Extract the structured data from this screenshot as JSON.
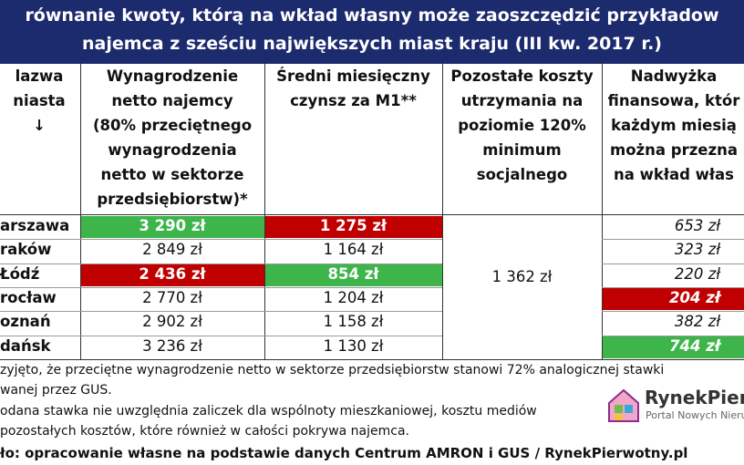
{
  "title": {
    "lines": [
      "równanie kwoty, którą na wkład własny może zaoszczędzić przykładow",
      "najemca z sześciu największych miast kraju (III kw. 2017 r.)"
    ]
  },
  "table": {
    "headers": [
      [
        "lazwa",
        "niasta",
        "↓"
      ],
      [
        "Wynagrodzenie",
        "netto najemcy",
        "(80% przeciętnego",
        "wynagrodzenia",
        "netto w sektorze",
        "przedsiębiorstw)*"
      ],
      [
        "Średni miesięczny",
        "czynsz za M1**"
      ],
      [
        "Pozostałe koszty",
        "utrzymania na",
        "poziomie 120%",
        "minimum",
        "socjalnego"
      ],
      [
        "Nadwyżka",
        "finansowa, któr",
        "każdym miesią",
        "można przezna",
        "na wkład włas"
      ]
    ],
    "rows": [
      {
        "city": "arszawa",
        "salary": "3 290 zł",
        "rent": "1 275 zł",
        "surplus": "653 zł",
        "salary_color": "#3db54a",
        "rent_color": "#c00000"
      },
      {
        "city": "raków",
        "salary": "2 849 zł",
        "rent": "1 164 zł",
        "surplus": "323 zł"
      },
      {
        "city": "Łódź",
        "salary": "2 436 zł",
        "rent": "854 zł",
        "surplus": "220 zł",
        "salary_color": "#c00000",
        "rent_color": "#3db54a"
      },
      {
        "city": "rocław",
        "salary": "2 770 zł",
        "rent": "1 204 zł",
        "surplus": "204 zł",
        "surplus_color": "#c00000"
      },
      {
        "city": "oznań",
        "salary": "2 902 zł",
        "rent": "1 158 zł",
        "surplus": "382 zł"
      },
      {
        "city": "dańsk",
        "salary": "3 236 zł",
        "rent": "1 130 zł",
        "surplus": "744 zł",
        "surplus_color": "#3db54a"
      }
    ],
    "other_costs": "1 362 zł"
  },
  "footnotes": [
    "zyjęto, że przeciętne wynagrodzenie netto w sektorze przedsiębiorstw stanowi 72% analogicznej stawki",
    "wanej przez GUS.",
    "odana stawka nie uwzględnia zaliczek dla wspólnoty mieszkaniowej, kosztu mediów",
    "pozostałych kosztów, które również w całości pokrywa najemca."
  ],
  "source": "ło: opracowanie własne na podstawie danych Centrum AMRON i GUS / RynekPierwotny.pl",
  "logo": {
    "name": "RynekPierwo",
    "tagline": "Portal Nowych Nieruc"
  }
}
